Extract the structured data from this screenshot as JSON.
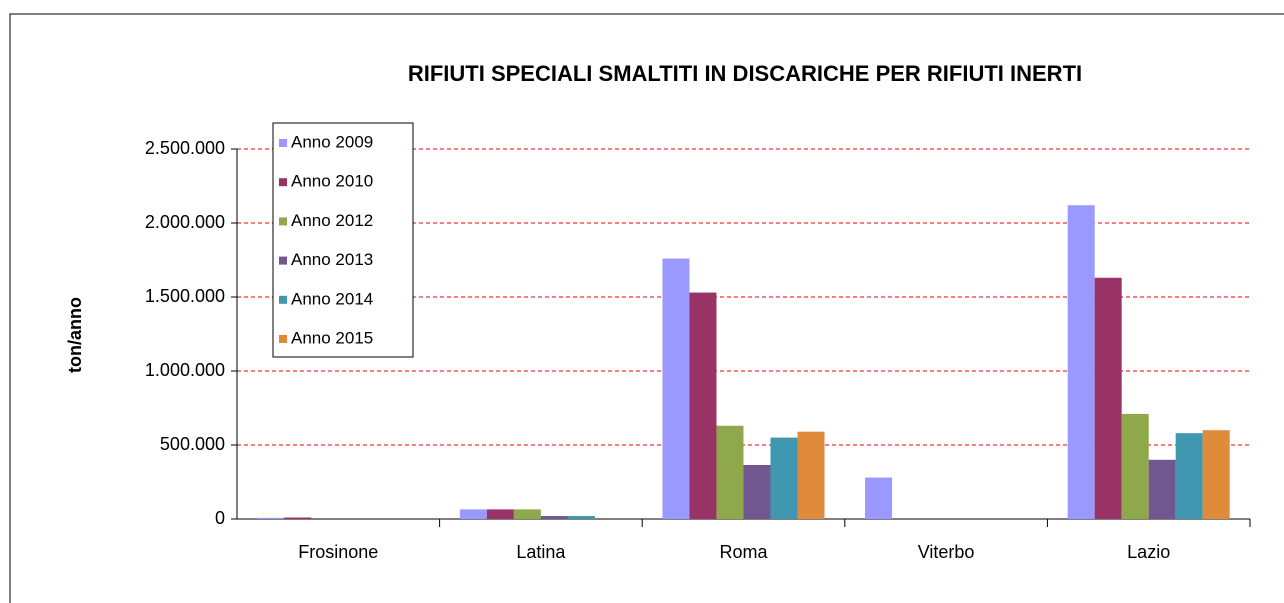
{
  "chart_data": {
    "type": "bar",
    "title": "RIFIUTI SPECIALI SMALTITI IN DISCARICHE PER RIFIUTI INERTI",
    "y_label": "ton/anno",
    "categories": [
      "Frosinone",
      "Latina",
      "Roma",
      "Viterbo",
      "Lazio"
    ],
    "series": [
      {
        "name": "Anno 2009",
        "color": "#9999ff",
        "values": [
          8000,
          65000,
          1760000,
          280000,
          2120000
        ]
      },
      {
        "name": "Anno 2010",
        "color": "#993366",
        "values": [
          10000,
          65000,
          1530000,
          0,
          1630000
        ]
      },
      {
        "name": "Anno 2012",
        "color": "#8fa84c",
        "values": [
          0,
          65000,
          630000,
          0,
          710000
        ]
      },
      {
        "name": "Anno 2013",
        "color": "#70578f",
        "values": [
          0,
          20000,
          365000,
          0,
          400000
        ]
      },
      {
        "name": "Anno 2014",
        "color": "#3f98b0",
        "values": [
          0,
          20000,
          550000,
          0,
          580000
        ]
      },
      {
        "name": "Anno 2015",
        "color": "#e08a3c",
        "values": [
          0,
          0,
          590000,
          0,
          600000
        ]
      }
    ],
    "ylim": [
      0,
      2500000
    ],
    "yticks": [
      0,
      {
        "value": 500000,
        "label": "500.000"
      },
      {
        "value": 1000000,
        "label": "1.000.000"
      },
      {
        "value": 1500000,
        "label": "1.500.000"
      },
      {
        "value": 2000000,
        "label": "2.000.000"
      },
      {
        "value": 2500000,
        "label": "2.500.000"
      }
    ],
    "grid": true,
    "legend": "upper left"
  }
}
